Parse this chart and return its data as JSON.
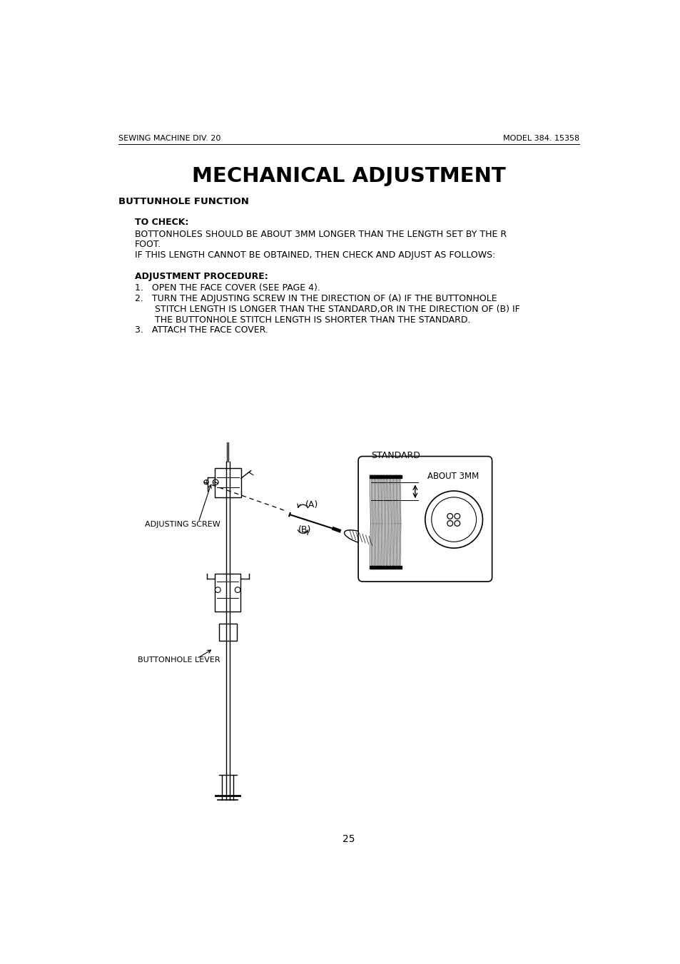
{
  "header_left": "SEWING MACHINE DIV. 20",
  "header_right": "MODEL 384. 15358",
  "title": "MECHANICAL ADJUSTMENT",
  "section_title": "BUTTUNHOLE FUNCTION",
  "to_check_label": "TO CHECK:",
  "to_check_text1": "BOTTONHOLES SHOULD BE ABOUT 3MM LONGER THAN THE LENGTH SET BY THE R",
  "to_check_text2": "FOOT.",
  "to_check_text3": "IF THIS LENGTH CANNOT BE OBTAINED, THEN CHECK AND ADJUST AS FOLLOWS:",
  "adj_proc_label": "ADJUSTMENT PROCEDURE:",
  "step1": "OPEN THE FACE COVER (SEE PAGE 4).",
  "step2a": "TURN THE ADJUSTING SCREW IN THE DIRECTION OF (A) IF THE BUTTONHOLE",
  "step2b": "STITCH LENGTH IS LONGER THAN THE STANDARD,OR IN THE DIRECTION OF (B) IF",
  "step2c": "THE BUTTONHOLE STITCH LENGTH IS SHORTER THAN THE STANDARD.",
  "step3": "ATTACH THE FACE COVER.",
  "label_adjusting_screw": "ADJUSTING SCREW",
  "label_buttonhole_lever": "BUTTONHOLE LEVER",
  "label_A": "(A)",
  "label_B": "(B)",
  "label_standard": "STANDARD",
  "label_about_3mm": "ABOUT 3MM",
  "page_number": "25",
  "bg_color": "#ffffff",
  "text_color": "#000000"
}
